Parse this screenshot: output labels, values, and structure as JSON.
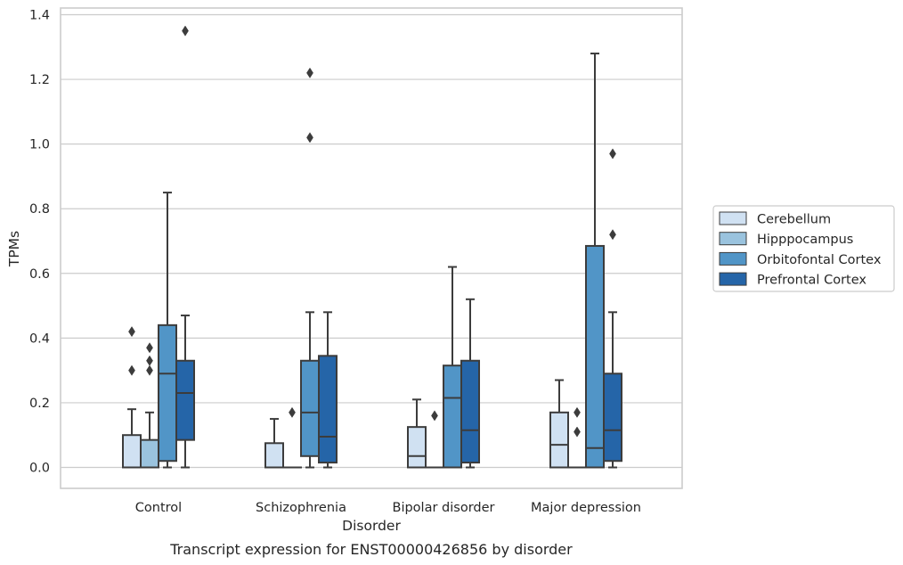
{
  "chart_data": {
    "type": "box",
    "xlabel": "Disorder",
    "ylabel": "TPMs",
    "caption": "Transcript expression for ENST00000426856 by disorder",
    "ylim": [
      -0.065,
      1.42
    ],
    "yticks": [
      "0.0",
      "0.2",
      "0.4",
      "0.6",
      "0.8",
      "1.0",
      "1.2",
      "1.4"
    ],
    "ytick_values": [
      0.0,
      0.2,
      0.4,
      0.6,
      0.8,
      1.0,
      1.2,
      1.4
    ],
    "grid": "horizontal",
    "legend_position": "right",
    "categories": [
      "Control",
      "Schizophrenia",
      "Bipolar disorder",
      "Major depression"
    ],
    "series": [
      {
        "name": "Cerebellum",
        "color": "#d0e1f2",
        "boxes": [
          {
            "q1": 0.0,
            "median": 0.0,
            "q3": 0.1,
            "whisker_low": 0.0,
            "whisker_high": 0.18,
            "outliers": [
              0.3,
              0.42
            ]
          },
          {
            "q1": 0.0,
            "median": 0.0,
            "q3": 0.075,
            "whisker_low": 0.0,
            "whisker_high": 0.15,
            "outliers": []
          },
          {
            "q1": 0.0,
            "median": 0.035,
            "q3": 0.125,
            "whisker_low": 0.0,
            "whisker_high": 0.21,
            "outliers": []
          },
          {
            "q1": 0.0,
            "median": 0.07,
            "q3": 0.17,
            "whisker_low": 0.0,
            "whisker_high": 0.27,
            "outliers": []
          }
        ]
      },
      {
        "name": "Hipppocampus",
        "color": "#9ac3de",
        "boxes": [
          {
            "q1": 0.0,
            "median": 0.0,
            "q3": 0.085,
            "whisker_low": 0.0,
            "whisker_high": 0.17,
            "outliers": [
              0.3,
              0.33,
              0.37
            ]
          },
          {
            "q1": 0.0,
            "median": 0.0,
            "q3": 0.0,
            "whisker_low": 0.0,
            "whisker_high": 0.0,
            "outliers": [
              0.17
            ]
          },
          {
            "q1": 0.0,
            "median": 0.0,
            "q3": 0.0,
            "whisker_low": 0.0,
            "whisker_high": 0.0,
            "outliers": [
              0.16
            ]
          },
          {
            "q1": 0.0,
            "median": 0.0,
            "q3": 0.0,
            "whisker_low": 0.0,
            "whisker_high": 0.0,
            "outliers": [
              0.11,
              0.17
            ]
          }
        ]
      },
      {
        "name": "Orbitofontal Cortex",
        "color": "#5195c7",
        "boxes": [
          {
            "q1": 0.02,
            "median": 0.29,
            "q3": 0.44,
            "whisker_low": 0.0,
            "whisker_high": 0.85,
            "outliers": []
          },
          {
            "q1": 0.035,
            "median": 0.17,
            "q3": 0.33,
            "whisker_low": 0.0,
            "whisker_high": 0.48,
            "outliers": [
              1.02,
              1.22
            ]
          },
          {
            "q1": 0.0,
            "median": 0.215,
            "q3": 0.315,
            "whisker_low": 0.0,
            "whisker_high": 0.62,
            "outliers": []
          },
          {
            "q1": 0.0,
            "median": 0.06,
            "q3": 0.685,
            "whisker_low": 0.0,
            "whisker_high": 1.28,
            "outliers": []
          }
        ]
      },
      {
        "name": "Prefrontal Cortex",
        "color": "#2565a8",
        "boxes": [
          {
            "q1": 0.085,
            "median": 0.23,
            "q3": 0.33,
            "whisker_low": 0.0,
            "whisker_high": 0.47,
            "outliers": [
              1.35
            ]
          },
          {
            "q1": 0.015,
            "median": 0.095,
            "q3": 0.345,
            "whisker_low": 0.0,
            "whisker_high": 0.48,
            "outliers": []
          },
          {
            "q1": 0.015,
            "median": 0.115,
            "q3": 0.33,
            "whisker_low": 0.0,
            "whisker_high": 0.52,
            "outliers": []
          },
          {
            "q1": 0.02,
            "median": 0.115,
            "q3": 0.29,
            "whisker_low": 0.0,
            "whisker_high": 0.48,
            "outliers": [
              0.72,
              0.97
            ]
          }
        ]
      }
    ]
  }
}
